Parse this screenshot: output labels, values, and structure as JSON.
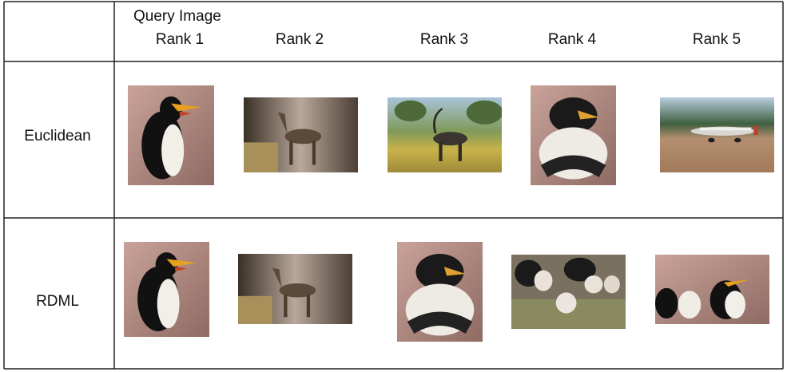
{
  "header": {
    "query_label": "Query Image",
    "ranks": [
      "Rank 1",
      "Rank 2",
      "Rank 3",
      "Rank 4",
      "Rank 5"
    ]
  },
  "rows": [
    {
      "label": "Euclidean"
    },
    {
      "label": "RDML"
    }
  ]
}
